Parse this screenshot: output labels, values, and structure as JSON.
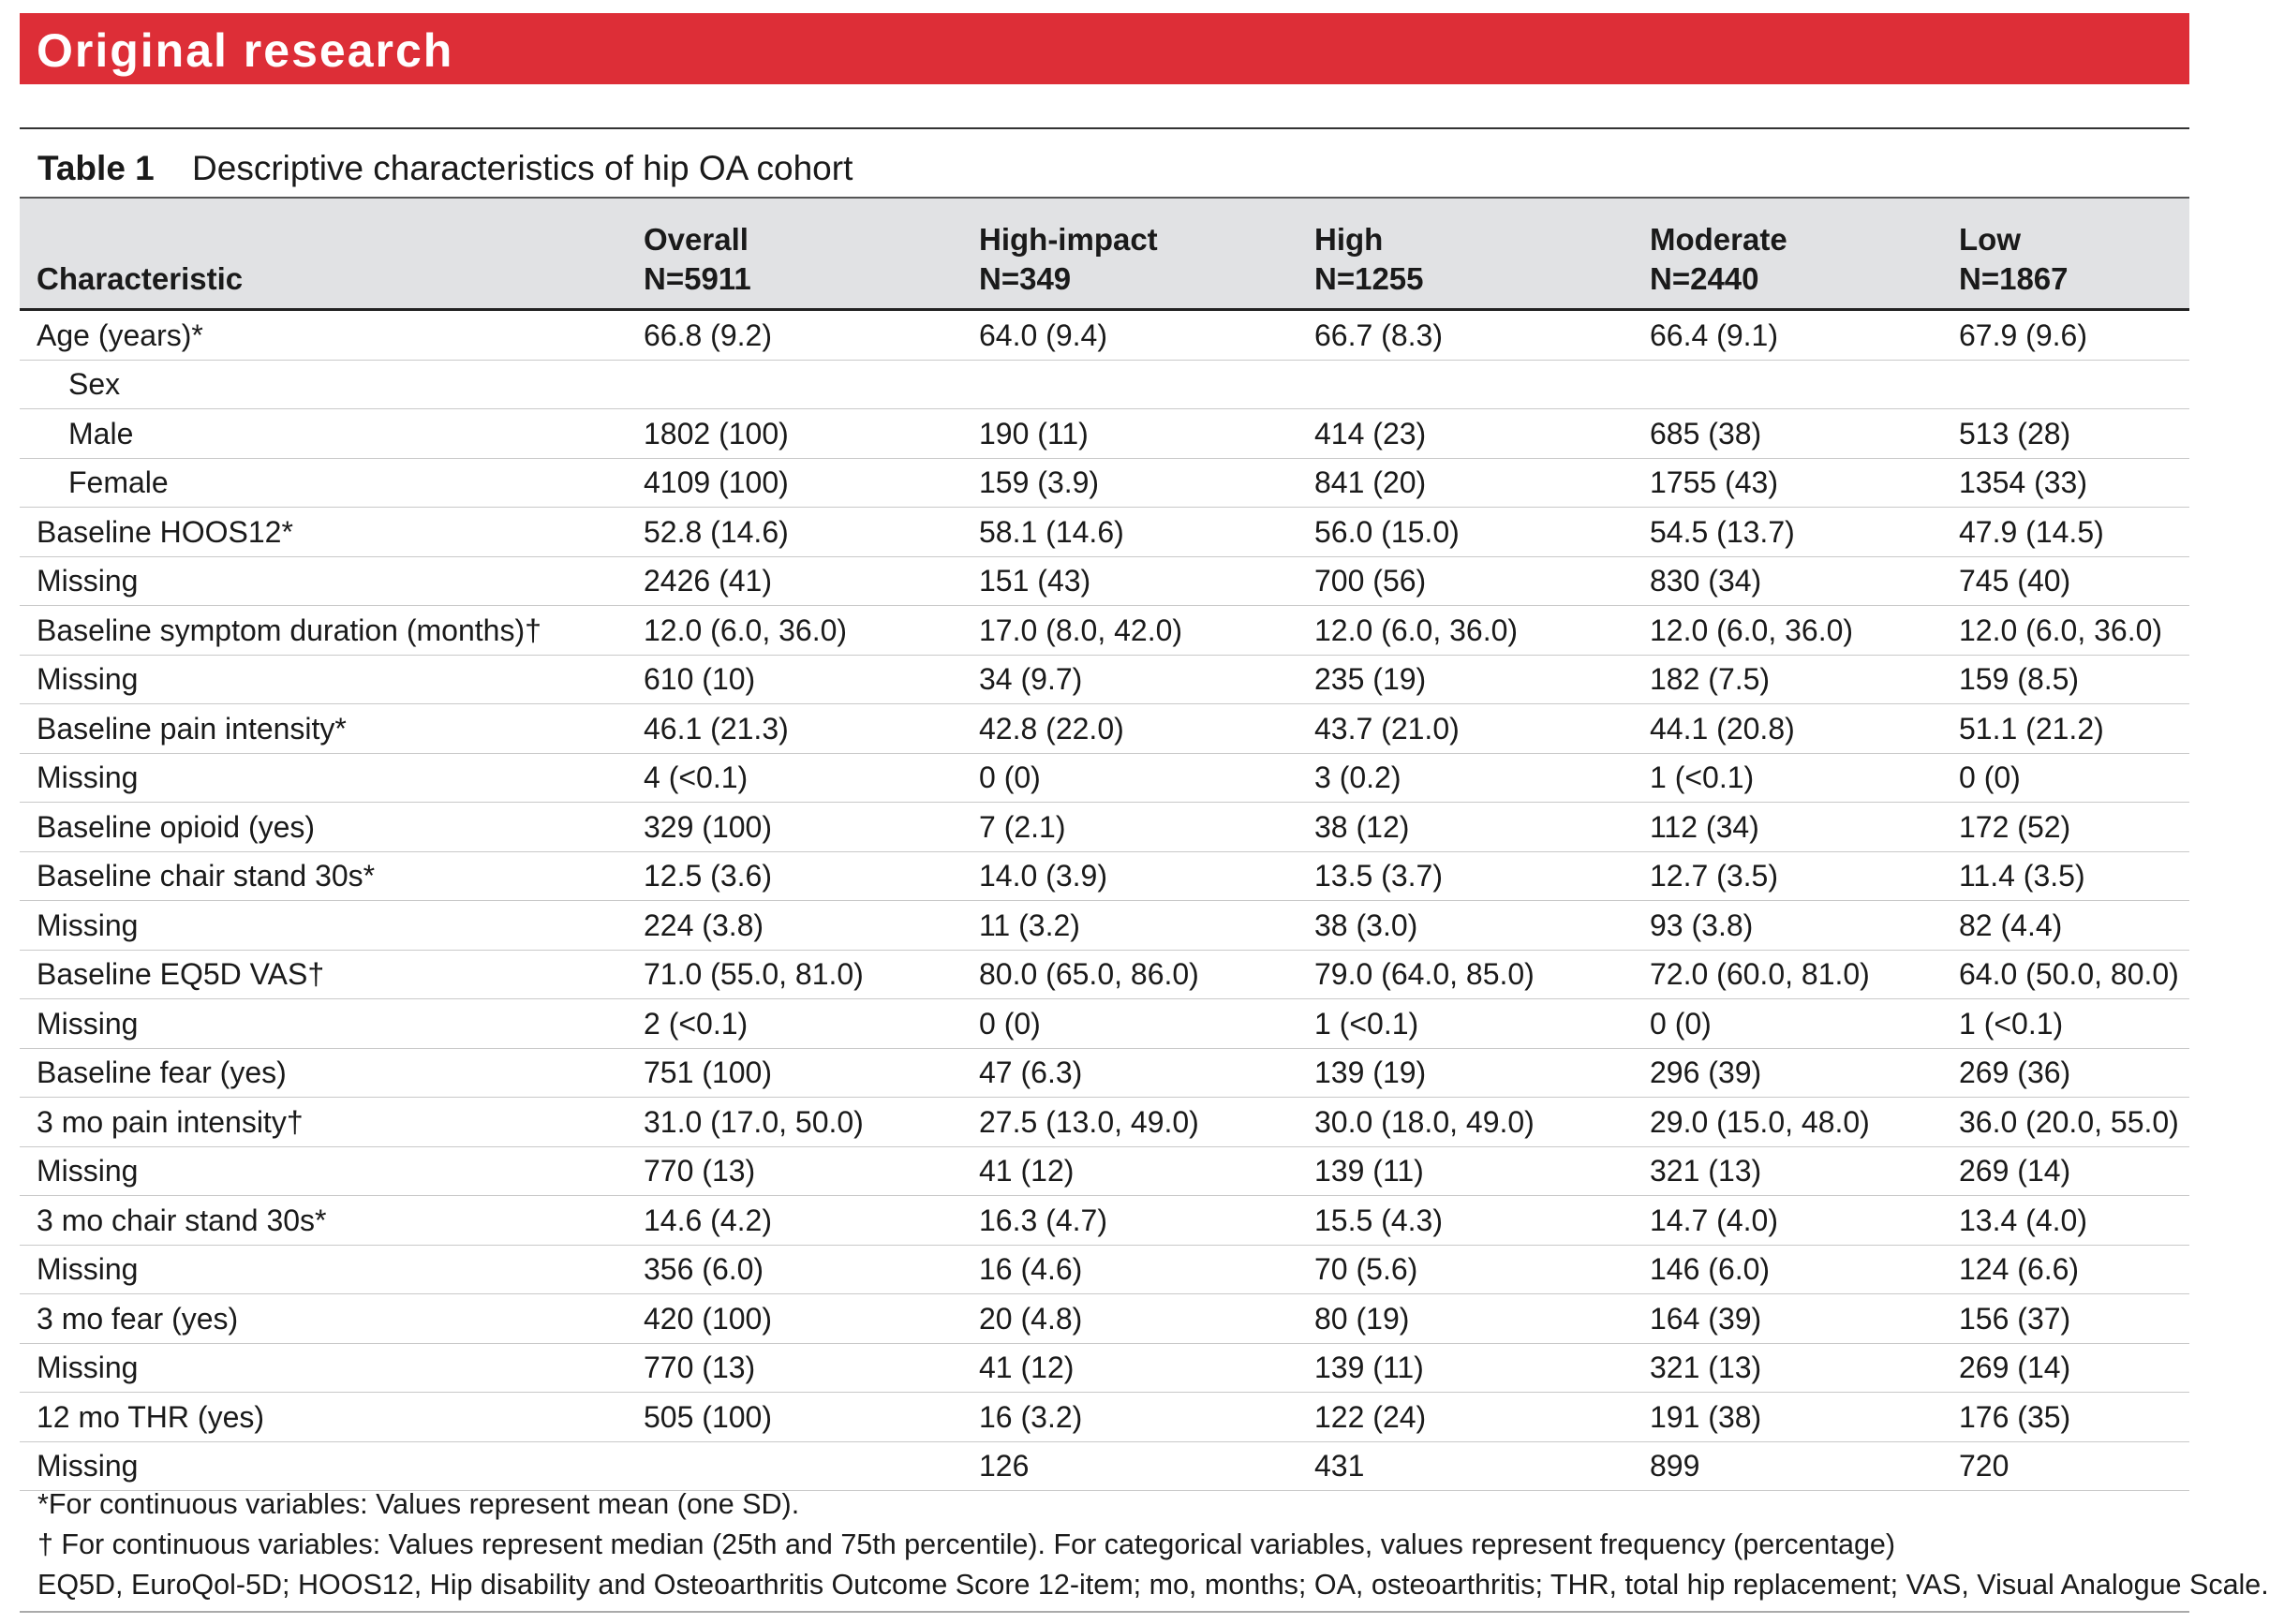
{
  "banner": {
    "title": "Original research"
  },
  "caption": {
    "label": "Table 1",
    "text": "Descriptive characteristics of hip OA cohort"
  },
  "table": {
    "header": {
      "characteristic": "Characteristic",
      "groups": [
        {
          "name": "Overall",
          "n": "N=5911"
        },
        {
          "name": "High-impact",
          "n": "N=349"
        },
        {
          "name": "High",
          "n": "N=1255"
        },
        {
          "name": "Moderate",
          "n": "N=2440"
        },
        {
          "name": "Low",
          "n": "N=1867"
        }
      ]
    },
    "rows": [
      {
        "label": "Age (years)*",
        "indent": false,
        "values": [
          "66.8 (9.2)",
          "64.0 (9.4)",
          "66.7 (8.3)",
          "66.4 (9.1)",
          "67.9 (9.6)"
        ]
      },
      {
        "label": "Sex",
        "indent": true,
        "values": [
          "",
          "",
          "",
          "",
          ""
        ]
      },
      {
        "label": "Male",
        "indent": true,
        "values": [
          "1802 (100)",
          "190 (11)",
          "414 (23)",
          "685 (38)",
          "513 (28)"
        ]
      },
      {
        "label": "Female",
        "indent": true,
        "values": [
          "4109 (100)",
          "159 (3.9)",
          "841 (20)",
          "1755 (43)",
          "1354 (33)"
        ]
      },
      {
        "label": "Baseline HOOS12*",
        "indent": false,
        "values": [
          "52.8 (14.6)",
          "58.1 (14.6)",
          "56.0 (15.0)",
          "54.5 (13.7)",
          "47.9 (14.5)"
        ]
      },
      {
        "label": "Missing",
        "indent": false,
        "values": [
          "2426 (41)",
          "151 (43)",
          "700 (56)",
          "830 (34)",
          "745 (40)"
        ]
      },
      {
        "label": "Baseline symptom duration (months)†",
        "indent": false,
        "values": [
          "12.0 (6.0, 36.0)",
          "17.0 (8.0, 42.0)",
          "12.0 (6.0, 36.0)",
          "12.0 (6.0, 36.0)",
          "12.0 (6.0, 36.0)"
        ]
      },
      {
        "label": "Missing",
        "indent": false,
        "values": [
          "610 (10)",
          "34 (9.7)",
          "235 (19)",
          "182 (7.5)",
          "159 (8.5)"
        ]
      },
      {
        "label": "Baseline pain intensity*",
        "indent": false,
        "values": [
          "46.1 (21.3)",
          "42.8 (22.0)",
          "43.7 (21.0)",
          "44.1 (20.8)",
          "51.1 (21.2)"
        ]
      },
      {
        "label": "Missing",
        "indent": false,
        "values": [
          "4 (<0.1)",
          "0 (0)",
          "3 (0.2)",
          "1 (<0.1)",
          "0 (0)"
        ]
      },
      {
        "label": "Baseline opioid (yes)",
        "indent": false,
        "values": [
          "329 (100)",
          "7 (2.1)",
          "38 (12)",
          "112 (34)",
          "172 (52)"
        ]
      },
      {
        "label": "Baseline chair stand 30s*",
        "indent": false,
        "values": [
          "12.5 (3.6)",
          "14.0 (3.9)",
          "13.5 (3.7)",
          "12.7 (3.5)",
          "11.4 (3.5)"
        ]
      },
      {
        "label": "Missing",
        "indent": false,
        "values": [
          "224 (3.8)",
          "11 (3.2)",
          "38 (3.0)",
          "93 (3.8)",
          "82 (4.4)"
        ]
      },
      {
        "label": "Baseline EQ5D VAS†",
        "indent": false,
        "values": [
          "71.0 (55.0, 81.0)",
          "80.0 (65.0, 86.0)",
          "79.0 (64.0, 85.0)",
          "72.0 (60.0, 81.0)",
          "64.0 (50.0, 80.0)"
        ]
      },
      {
        "label": "Missing",
        "indent": false,
        "values": [
          "2 (<0.1)",
          "0 (0)",
          "1 (<0.1)",
          "0 (0)",
          "1 (<0.1)"
        ]
      },
      {
        "label": "Baseline fear (yes)",
        "indent": false,
        "values": [
          "751 (100)",
          "47 (6.3)",
          "139 (19)",
          "296 (39)",
          "269 (36)"
        ]
      },
      {
        "label": "3 mo pain intensity†",
        "indent": false,
        "values": [
          "31.0 (17.0, 50.0)",
          "27.5 (13.0, 49.0)",
          "30.0 (18.0, 49.0)",
          "29.0 (15.0, 48.0)",
          "36.0 (20.0, 55.0)"
        ]
      },
      {
        "label": "Missing",
        "indent": false,
        "values": [
          "770 (13)",
          "41 (12)",
          "139 (11)",
          "321 (13)",
          "269 (14)"
        ]
      },
      {
        "label": "3 mo chair stand 30s*",
        "indent": false,
        "values": [
          "14.6 (4.2)",
          "16.3 (4.7)",
          "15.5 (4.3)",
          "14.7 (4.0)",
          "13.4 (4.0)"
        ]
      },
      {
        "label": "Missing",
        "indent": false,
        "values": [
          "356 (6.0)",
          "16 (4.6)",
          "70 (5.6)",
          "146 (6.0)",
          "124 (6.6)"
        ]
      },
      {
        "label": "3 mo fear (yes)",
        "indent": false,
        "values": [
          "420 (100)",
          "20 (4.8)",
          "80 (19)",
          "164 (39)",
          "156 (37)"
        ]
      },
      {
        "label": "Missing",
        "indent": false,
        "values": [
          "770 (13)",
          "41 (12)",
          "139 (11)",
          "321 (13)",
          "269 (14)"
        ]
      },
      {
        "label": "12 mo THR (yes)",
        "indent": false,
        "values": [
          "505 (100)",
          "16 (3.2)",
          "122 (24)",
          "191 (38)",
          "176 (35)"
        ]
      },
      {
        "label": "Missing",
        "indent": false,
        "values": [
          "",
          "126",
          "431",
          "899",
          "720"
        ]
      }
    ]
  },
  "footnotes": [
    "*For continuous variables: Values represent mean (one SD).",
    "† For continuous variables: Values represent median (25th and 75th percentile). For categorical variables, values represent frequency (percentage)",
    "EQ5D, EuroQol-5D; HOOS12, Hip disability and Osteoarthritis Outcome Score 12-item; mo, months; OA, osteoarthritis; THR, total hip replacement; VAS, Visual Analogue Scale."
  ]
}
